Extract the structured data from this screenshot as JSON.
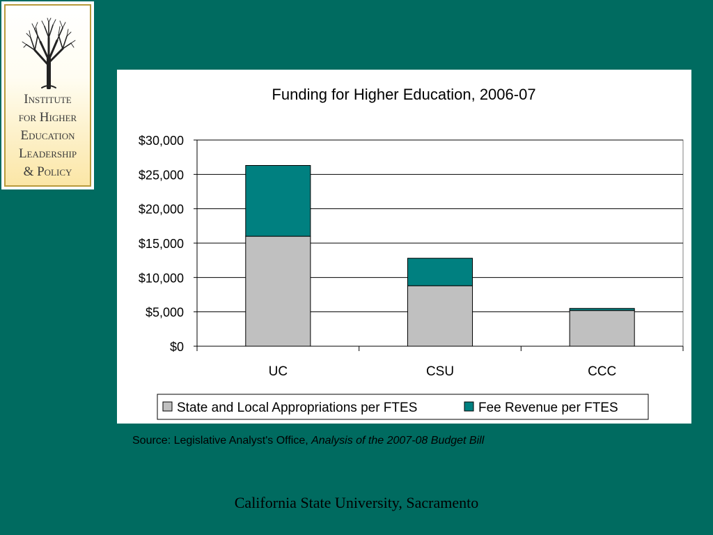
{
  "logo": {
    "lines": [
      "Institute",
      "for Higher",
      "Education",
      "Leadership",
      "& Policy"
    ],
    "icon": "tree-icon"
  },
  "chart_data": {
    "type": "bar",
    "stacked": true,
    "title": "Funding for Higher Education, 2006-07",
    "xlabel": "",
    "ylabel": "",
    "categories": [
      "UC",
      "CSU",
      "CCC"
    ],
    "series": [
      {
        "name": "State and Local Appropriations per FTES",
        "values": [
          16000,
          8800,
          5200
        ],
        "color": "#c0c0c0"
      },
      {
        "name": "Fee Revenue per FTES",
        "values": [
          10300,
          4000,
          300
        ],
        "color": "#008080"
      }
    ],
    "ylim": [
      0,
      30000
    ],
    "yticks": [
      0,
      5000,
      10000,
      15000,
      20000,
      25000,
      30000
    ],
    "ytick_labels": [
      "$0",
      "$5,000",
      "$10,000",
      "$15,000",
      "$20,000",
      "$25,000",
      "$30,000"
    ],
    "grid": true,
    "legend_position": "bottom"
  },
  "source": {
    "prefix": "Source: Legislative Analyst's Office, ",
    "title": "Analysis of the 2007-08 Budget Bill"
  },
  "footer": "California State University, Sacramento",
  "colors": {
    "background": "#006b60",
    "appropriations": "#c0c0c0",
    "fees": "#008080"
  }
}
